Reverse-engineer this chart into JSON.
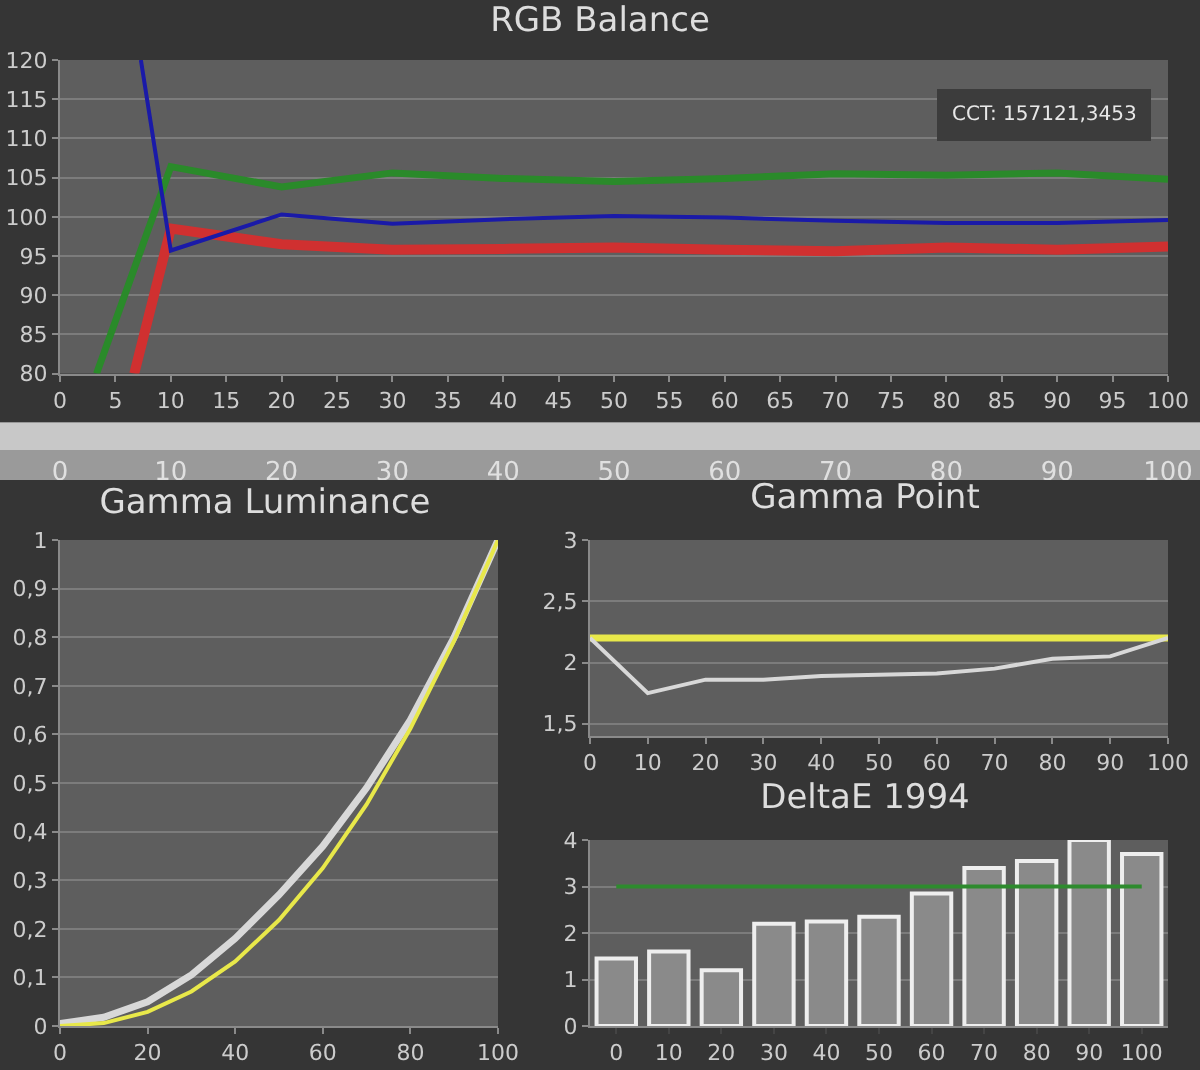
{
  "chart_data": [
    {
      "type": "line",
      "title": "RGB Balance",
      "xlim": [
        0,
        100
      ],
      "xticks": [
        0,
        5,
        10,
        15,
        20,
        25,
        30,
        35,
        40,
        45,
        50,
        55,
        60,
        65,
        70,
        75,
        80,
        85,
        90,
        95,
        100
      ],
      "x2lim": [
        0,
        100
      ],
      "x2ticks": [
        0,
        10,
        20,
        30,
        40,
        50,
        60,
        70,
        80,
        90,
        100
      ],
      "ylim": [
        80,
        120
      ],
      "yticks": [
        80,
        85,
        90,
        95,
        100,
        105,
        110,
        115,
        120
      ],
      "grid": "y",
      "annotations": [
        "CCT: 157121,3453"
      ],
      "series": [
        {
          "color": "#d03030",
          "x": [
            6.7,
            10,
            20,
            30,
            40,
            50,
            60,
            70,
            80,
            90,
            100
          ],
          "values": [
            80,
            98.5,
            96.5,
            95.8,
            95.9,
            96.1,
            95.8,
            95.6,
            96.1,
            95.8,
            96.2
          ]
        },
        {
          "color": "#2a8a2a",
          "x": [
            3.3,
            10,
            20,
            30,
            40,
            50,
            60,
            70,
            80,
            90,
            100
          ],
          "values": [
            80,
            106.4,
            103.8,
            105.6,
            104.9,
            104.5,
            104.9,
            105.5,
            105.3,
            105.6,
            104.8
          ]
        },
        {
          "color": "#1a1aa8",
          "x": [
            7.3,
            10,
            20,
            30,
            40,
            50,
            60,
            70,
            80,
            90,
            100
          ],
          "values": [
            120,
            95.7,
            100.3,
            99.1,
            99.7,
            100.1,
            99.9,
            99.5,
            99.2,
            99.2,
            99.6
          ]
        }
      ]
    },
    {
      "type": "line",
      "title": "Gamma Luminance",
      "xlim": [
        0,
        100
      ],
      "xticks": [
        0,
        20,
        40,
        60,
        80,
        100
      ],
      "ylim": [
        0,
        1
      ],
      "yticks": [
        0,
        {
          "value": 0.1,
          "label": "0,1"
        },
        {
          "value": 0.2,
          "label": "0,2"
        },
        {
          "value": 0.3,
          "label": "0,3"
        },
        {
          "value": 0.4,
          "label": "0,4"
        },
        {
          "value": 0.5,
          "label": "0,5"
        },
        {
          "value": 0.6,
          "label": "0,6"
        },
        {
          "value": 0.7,
          "label": "0,7"
        },
        {
          "value": 0.8,
          "label": "0,8"
        },
        {
          "value": 0.9,
          "label": "0,9"
        },
        1
      ],
      "grid": "y",
      "x": [
        0,
        10,
        20,
        30,
        40,
        50,
        60,
        70,
        80,
        90,
        100
      ],
      "series": [
        {
          "color": "#d8d8d8",
          "values": [
            0.005,
            0.018,
            0.05,
            0.105,
            0.18,
            0.27,
            0.37,
            0.49,
            0.63,
            0.8,
            1
          ]
        },
        {
          "color": "#e8e84a",
          "values": [
            0,
            0.006,
            0.029,
            0.071,
            0.133,
            0.218,
            0.325,
            0.456,
            0.612,
            0.793,
            1
          ]
        }
      ]
    },
    {
      "type": "line",
      "title": "Gamma Point",
      "xlim": [
        0,
        100
      ],
      "xticks": [
        0,
        10,
        20,
        30,
        40,
        50,
        60,
        70,
        80,
        90,
        100
      ],
      "ylim": [
        1.4,
        3
      ],
      "yticks": [
        {
          "value": 1.5,
          "label": "1,5"
        },
        2,
        {
          "value": 2.5,
          "label": "2,5"
        },
        3
      ],
      "grid": "y",
      "x": [
        0,
        10,
        20,
        30,
        40,
        50,
        60,
        70,
        80,
        90,
        100
      ],
      "series": [
        {
          "color": "#e8e84a",
          "values": [
            2.2,
            2.2,
            2.2,
            2.2,
            2.2,
            2.2,
            2.2,
            2.2,
            2.2,
            2.2,
            2.2
          ]
        },
        {
          "color": "#d8d8d8",
          "values": [
            2.2,
            1.75,
            1.86,
            1.86,
            1.89,
            1.9,
            1.91,
            1.95,
            2.03,
            2.05,
            2.2
          ]
        }
      ]
    },
    {
      "type": "bar",
      "title": "DeltaE 1994",
      "categories": [
        "0",
        "10",
        "20",
        "30",
        "40",
        "50",
        "60",
        "70",
        "80",
        "90",
        "100"
      ],
      "ylim": [
        0,
        4
      ],
      "yticks": [
        0,
        1,
        2,
        3,
        4
      ],
      "grid": "y",
      "color": "#8a8a8a",
      "values": [
        1.45,
        1.6,
        1.2,
        2.2,
        2.25,
        2.35,
        2.85,
        3.4,
        3.55,
        4.0,
        3.7
      ],
      "ref_lines": [
        {
          "axis": "y",
          "value": 3,
          "color": "#2e8b2e"
        }
      ]
    }
  ]
}
